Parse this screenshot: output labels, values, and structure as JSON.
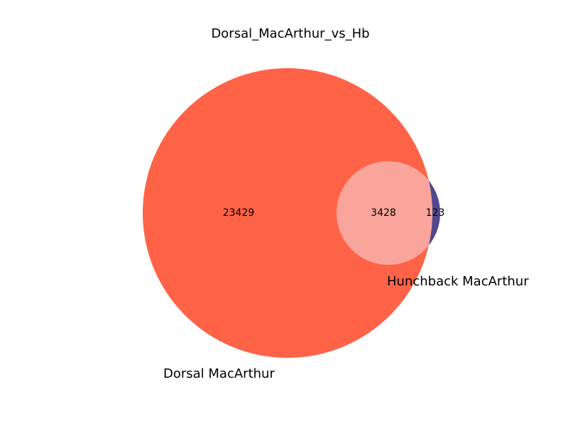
{
  "chart_data": {
    "type": "venn",
    "title": "Dorsal_MacArthur_vs_Hb",
    "sets": [
      {
        "name": "Dorsal MacArthur",
        "color": "#FF6347"
      },
      {
        "name": "Hunchback MacArthur",
        "color": "#483D8B"
      }
    ],
    "regions": {
      "only_a": 23429,
      "intersection": 3428,
      "only_b": 123
    },
    "intersection_color": "#FAA59C"
  }
}
